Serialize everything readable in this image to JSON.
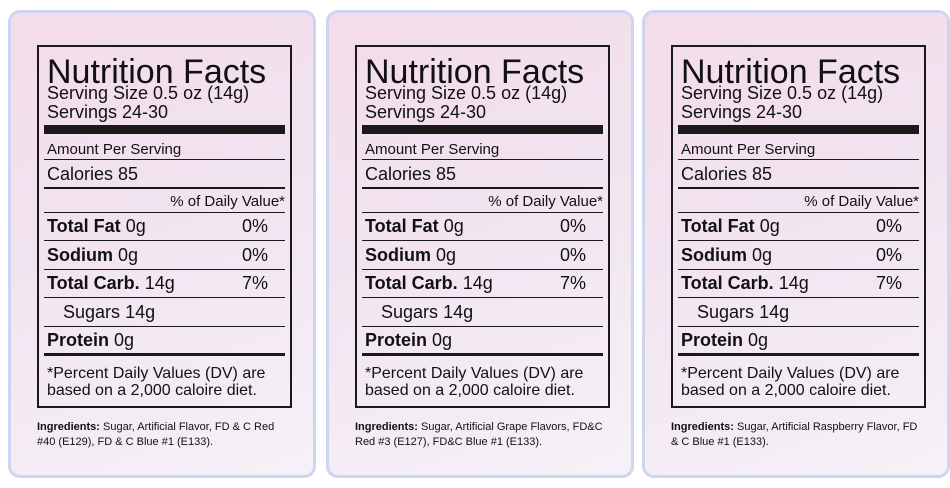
{
  "labels": [
    {
      "title": "Nutrition Facts",
      "serving_size": "Serving Size 0.5 oz (14g)",
      "servings": "Servings 24-30",
      "amount_per_serving": "Amount Per Serving",
      "calories": "Calories 85",
      "daily_value_header": "% of Daily Value*",
      "rows": [
        {
          "name": "Total Fat",
          "amount": "0g",
          "percent": "0%"
        },
        {
          "name": "Sodium",
          "amount": "0g",
          "percent": "0%"
        },
        {
          "name": "Total Carb.",
          "amount": "14g",
          "percent": "7%"
        }
      ],
      "sugars": {
        "name": "Sugars",
        "amount": "14g"
      },
      "protein": {
        "name": "Protein",
        "amount": "0g"
      },
      "footnote": "*Percent Daily Values (DV) are based on a 2,000 caloire diet.",
      "ingredients_label": "Ingredients:",
      "ingredients": "Sugar, Artificial Flavor, FD & C Red #40 (E129), FD & C Blue #1 (E133)."
    },
    {
      "title": "Nutrition Facts",
      "serving_size": "Serving Size 0.5 oz (14g)",
      "servings": "Servings 24-30",
      "amount_per_serving": "Amount Per Serving",
      "calories": "Calories 85",
      "daily_value_header": "% of Daily Value*",
      "rows": [
        {
          "name": "Total Fat",
          "amount": "0g",
          "percent": "0%"
        },
        {
          "name": "Sodium",
          "amount": "0g",
          "percent": "0%"
        },
        {
          "name": "Total Carb.",
          "amount": "14g",
          "percent": "7%"
        }
      ],
      "sugars": {
        "name": "Sugars",
        "amount": "14g"
      },
      "protein": {
        "name": "Protein",
        "amount": "0g"
      },
      "footnote": "*Percent Daily Values (DV) are based on a 2,000 caloire diet.",
      "ingredients_label": "Ingredients:",
      "ingredients": "Sugar, Artificial Grape Flavors, FD&C Red #3 (E127), FD&C Blue #1 (E133)."
    },
    {
      "title": "Nutrition Facts",
      "serving_size": "Serving Size 0.5 oz (14g)",
      "servings": "Servings 24-30",
      "amount_per_serving": "Amount Per Serving",
      "calories": "Calories 85",
      "daily_value_header": "% of Daily Value*",
      "rows": [
        {
          "name": "Total Fat",
          "amount": "0g",
          "percent": "0%"
        },
        {
          "name": "Sodium",
          "amount": "0g",
          "percent": "0%"
        },
        {
          "name": "Total Carb.",
          "amount": "14g",
          "percent": "7%"
        }
      ],
      "sugars": {
        "name": "Sugars",
        "amount": "14g"
      },
      "protein": {
        "name": "Protein",
        "amount": "0g"
      },
      "footnote": "*Percent Daily Values (DV) are based on a 2,000 caloire diet.",
      "ingredients_label": "Ingredients:",
      "ingredients": "Sugar, Artificial Raspberry Flavor, FD & C Blue #1 (E133)."
    }
  ]
}
